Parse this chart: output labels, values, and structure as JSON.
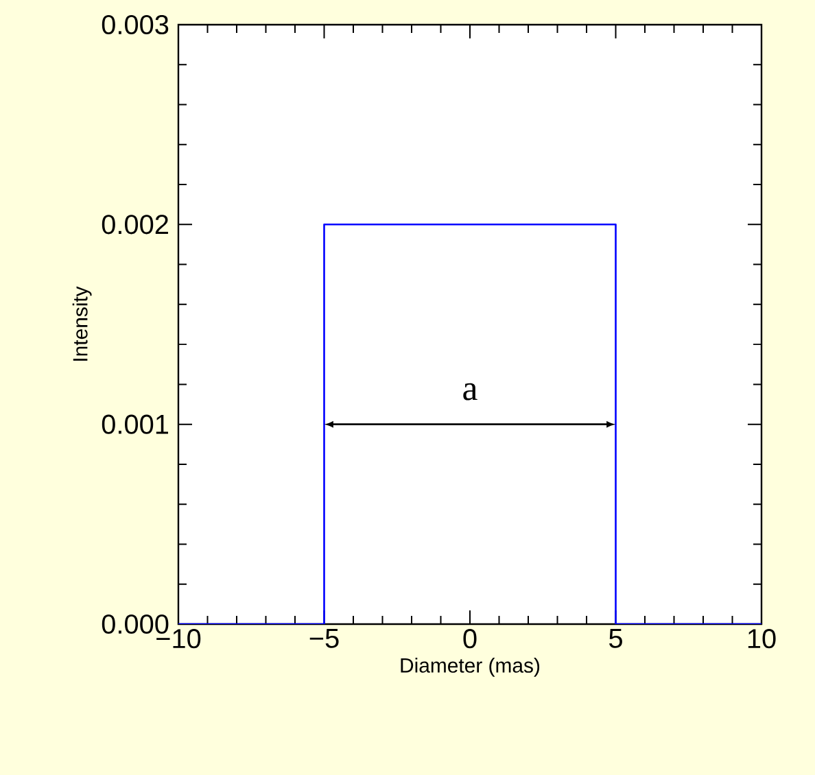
{
  "chart_data": {
    "type": "line",
    "xlabel": "Diameter (mas)",
    "ylabel": "Intensity",
    "x": [
      -10,
      -5,
      -5,
      5,
      5,
      10
    ],
    "series": [
      {
        "color": "#0000ff",
        "values": [
          0,
          0,
          0.002,
          0.002,
          0,
          0
        ]
      }
    ],
    "xlim": [
      -10,
      10
    ],
    "xticks": [
      {
        "value": -10,
        "label": "−10"
      },
      {
        "value": -5,
        "label": "−5"
      },
      0,
      5,
      10
    ],
    "ylim": [
      0,
      0.003
    ],
    "yticks": [
      {
        "value": 0,
        "label": "0.000"
      },
      {
        "value": 0.001,
        "label": "0.001"
      },
      {
        "value": 0.002,
        "label": "0.002"
      },
      {
        "value": 0.003,
        "label": "0.003"
      }
    ],
    "annotations": [
      "a"
    ],
    "grid": false
  }
}
